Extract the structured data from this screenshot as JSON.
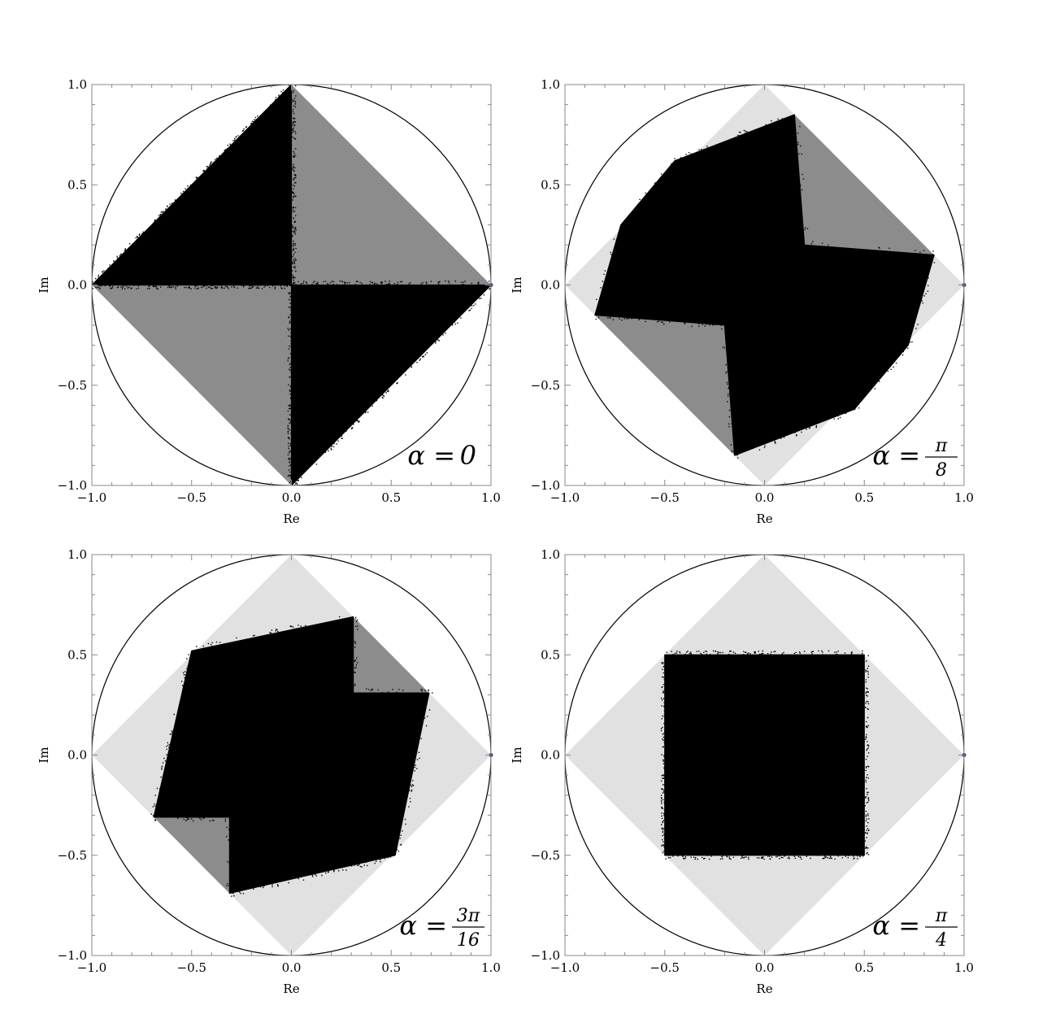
{
  "chart_data": [
    {
      "type": "scatter",
      "xlabel": "Re",
      "ylabel": "Im",
      "xlim": [
        -1.0,
        1.0
      ],
      "ylim": [
        -1.0,
        1.0
      ],
      "xticks": [
        "−1.0",
        "−0.5",
        "0.0",
        "0.5",
        "1.0"
      ],
      "yticks": [
        "−1.0",
        "−0.5",
        "0.0",
        "0.5",
        "1.0"
      ],
      "annotation": {
        "lhs": "α =",
        "num": "0",
        "den": ""
      },
      "unit_circle": true,
      "diamond_vertices": [
        [
          1,
          0
        ],
        [
          0,
          1
        ],
        [
          -1,
          0
        ],
        [
          0,
          -1
        ]
      ],
      "light_region": [],
      "gray_regions": [
        [
          [
            0,
            0
          ],
          [
            0,
            1
          ],
          [
            1,
            0
          ]
        ],
        [
          [
            0,
            0
          ],
          [
            -1,
            0
          ],
          [
            0,
            -1
          ]
        ]
      ],
      "black_regions": [
        [
          [
            0,
            0
          ],
          [
            -1,
            0
          ],
          [
            0,
            1
          ]
        ],
        [
          [
            0,
            0
          ],
          [
            1,
            0
          ],
          [
            0,
            -1
          ]
        ]
      ],
      "colors": {
        "light": "#e1e1e1",
        "gray": "#8c8c8c",
        "points": "#000000"
      }
    },
    {
      "type": "scatter",
      "xlabel": "Re",
      "ylabel": "Im",
      "xlim": [
        -1.0,
        1.0
      ],
      "ylim": [
        -1.0,
        1.0
      ],
      "xticks": [
        "−1.0",
        "−0.5",
        "0.0",
        "0.5",
        "1.0"
      ],
      "yticks": [
        "−1.0",
        "−0.5",
        "0.0",
        "0.5",
        "1.0"
      ],
      "annotation": {
        "lhs": "α =",
        "num": "π",
        "den": "8"
      },
      "unit_circle": true,
      "diamond_vertices": [
        [
          1,
          0
        ],
        [
          0,
          1
        ],
        [
          -1,
          0
        ],
        [
          0,
          -1
        ]
      ],
      "light_region": [
        [
          1,
          0
        ],
        [
          0,
          1
        ],
        [
          -1,
          0
        ],
        [
          0,
          -1
        ]
      ],
      "gray_regions": [
        [
          [
            0.15,
            0.85
          ],
          [
            0.85,
            0.15
          ],
          [
            0.2,
            0.2
          ]
        ],
        [
          [
            -0.85,
            -0.15
          ],
          [
            -0.15,
            -0.85
          ],
          [
            -0.2,
            -0.2
          ]
        ]
      ],
      "black_regions": [
        [
          [
            0.15,
            0.85
          ],
          [
            0.2,
            0.2
          ],
          [
            0.85,
            0.15
          ],
          [
            0.72,
            -0.3
          ],
          [
            0.45,
            -0.62
          ],
          [
            -0.15,
            -0.85
          ],
          [
            -0.2,
            -0.2
          ],
          [
            -0.85,
            -0.15
          ],
          [
            -0.72,
            0.3
          ],
          [
            -0.45,
            0.62
          ]
        ]
      ],
      "colors": {
        "light": "#e1e1e1",
        "gray": "#8c8c8c",
        "points": "#000000"
      }
    },
    {
      "type": "scatter",
      "xlabel": "Re",
      "ylabel": "Im",
      "xlim": [
        -1.0,
        1.0
      ],
      "ylim": [
        -1.0,
        1.0
      ],
      "xticks": [
        "−1.0",
        "−0.5",
        "0.0",
        "0.5",
        "1.0"
      ],
      "yticks": [
        "−1.0",
        "−0.5",
        "0.0",
        "0.5",
        "1.0"
      ],
      "annotation": {
        "lhs": "α =",
        "num": "3π",
        "den": "16"
      },
      "unit_circle": true,
      "diamond_vertices": [
        [
          1,
          0
        ],
        [
          0,
          1
        ],
        [
          -1,
          0
        ],
        [
          0,
          -1
        ]
      ],
      "light_region": [
        [
          1,
          0
        ],
        [
          0,
          1
        ],
        [
          -1,
          0
        ],
        [
          0,
          -1
        ]
      ],
      "gray_regions": [
        [
          [
            0.31,
            0.69
          ],
          [
            0.69,
            0.31
          ],
          [
            0.31,
            0.31
          ]
        ],
        [
          [
            -0.69,
            -0.31
          ],
          [
            -0.31,
            -0.69
          ],
          [
            -0.31,
            -0.31
          ]
        ]
      ],
      "black_regions": [
        [
          [
            -0.5,
            0.52
          ],
          [
            0.31,
            0.69
          ],
          [
            0.31,
            0.31
          ],
          [
            0.69,
            0.31
          ],
          [
            0.52,
            -0.5
          ],
          [
            -0.31,
            -0.69
          ],
          [
            -0.31,
            -0.31
          ],
          [
            -0.69,
            -0.31
          ]
        ]
      ],
      "colors": {
        "light": "#e1e1e1",
        "gray": "#8c8c8c",
        "points": "#000000"
      }
    },
    {
      "type": "scatter",
      "xlabel": "Re",
      "ylabel": "Im",
      "xlim": [
        -1.0,
        1.0
      ],
      "ylim": [
        -1.0,
        1.0
      ],
      "xticks": [
        "−1.0",
        "−0.5",
        "0.0",
        "0.5",
        "1.0"
      ],
      "yticks": [
        "−1.0",
        "−0.5",
        "0.0",
        "0.5",
        "1.0"
      ],
      "annotation": {
        "lhs": "α =",
        "num": "π",
        "den": "4"
      },
      "unit_circle": true,
      "diamond_vertices": [
        [
          1,
          0
        ],
        [
          0,
          1
        ],
        [
          -1,
          0
        ],
        [
          0,
          -1
        ]
      ],
      "light_region": [
        [
          1,
          0
        ],
        [
          0,
          1
        ],
        [
          -1,
          0
        ],
        [
          0,
          -1
        ]
      ],
      "gray_regions": [],
      "black_regions": [
        [
          [
            -0.5,
            0.5
          ],
          [
            0.5,
            0.5
          ],
          [
            0.5,
            -0.5
          ],
          [
            -0.5,
            -0.5
          ]
        ]
      ],
      "colors": {
        "light": "#e1e1e1",
        "gray": "#8c8c8c",
        "points": "#000000"
      }
    }
  ]
}
